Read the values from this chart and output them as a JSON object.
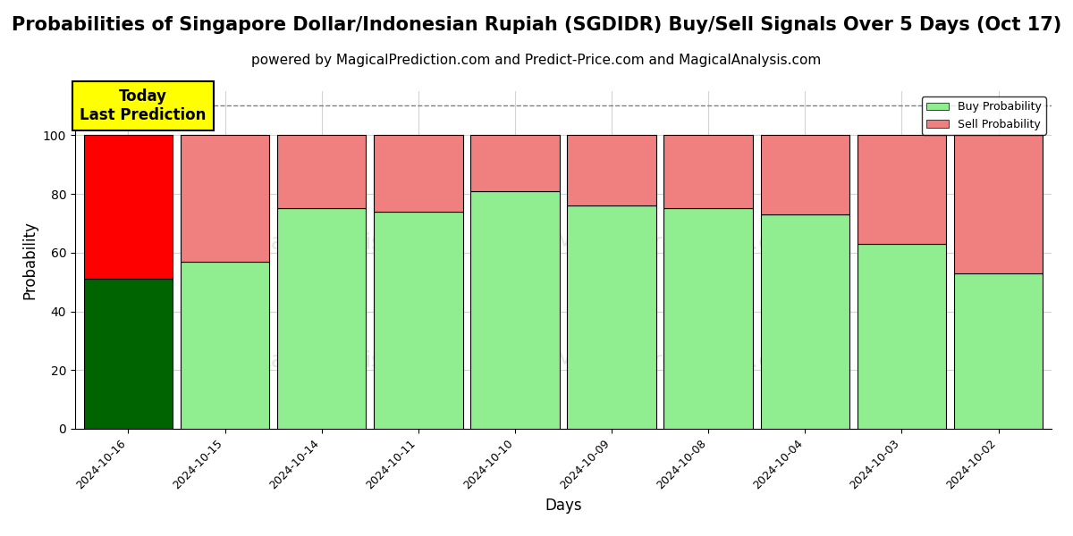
{
  "title": "Probabilities of Singapore Dollar/Indonesian Rupiah (SGDIDR) Buy/Sell Signals Over 5 Days (Oct 17)",
  "subtitle": "powered by MagicalPrediction.com and Predict-Price.com and MagicalAnalysis.com",
  "xlabel": "Days",
  "ylabel": "Probability",
  "categories": [
    "2024-10-16",
    "2024-10-15",
    "2024-10-14",
    "2024-10-11",
    "2024-10-10",
    "2024-10-09",
    "2024-10-08",
    "2024-10-04",
    "2024-10-03",
    "2024-10-02"
  ],
  "buy_values": [
    51,
    57,
    75,
    74,
    81,
    76,
    75,
    73,
    63,
    53
  ],
  "sell_values": [
    49,
    43,
    25,
    26,
    19,
    24,
    25,
    27,
    37,
    47
  ],
  "buy_colors": [
    "#006400",
    "#90EE90",
    "#90EE90",
    "#90EE90",
    "#90EE90",
    "#90EE90",
    "#90EE90",
    "#90EE90",
    "#90EE90",
    "#90EE90"
  ],
  "sell_colors": [
    "#FF0000",
    "#F08080",
    "#F08080",
    "#F08080",
    "#F08080",
    "#F08080",
    "#F08080",
    "#F08080",
    "#F08080",
    "#F08080"
  ],
  "legend_buy_color": "#90EE90",
  "legend_sell_color": "#F08080",
  "today_label": "Today\nLast Prediction",
  "today_box_color": "#FFFF00",
  "ylim": [
    0,
    115
  ],
  "dashed_line_y": 110,
  "background_color": "#ffffff",
  "title_fontsize": 15,
  "subtitle_fontsize": 11,
  "bar_width": 0.92,
  "watermark1": "calAnalysis.com",
  "watermark2": "MagicalPrediction.com",
  "watermark3": "calAnalysis.com",
  "watermark4": "MagicalPrediction.com"
}
